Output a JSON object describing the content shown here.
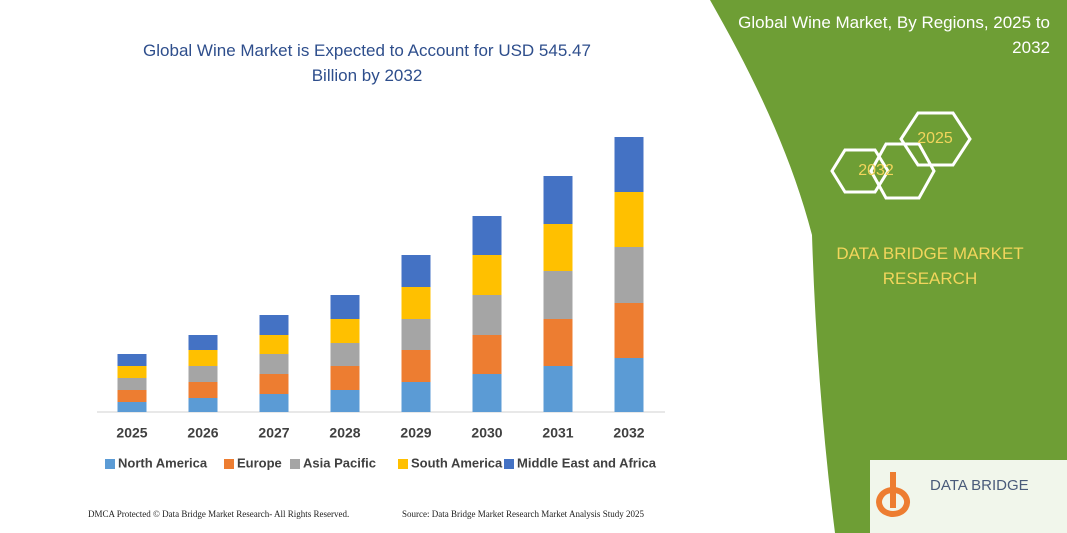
{
  "chart_data": {
    "type": "stacked_bar",
    "title": "Global Wine Market is Expected to Account for USD 545.47 Billion by 2032",
    "categories": [
      "2025",
      "2026",
      "2027",
      "2028",
      "2029",
      "2030",
      "2031",
      "2032"
    ],
    "series": [
      {
        "name": "North America",
        "color": "#5b9bd5",
        "values": [
          10,
          14,
          18,
          22,
          30,
          38,
          46,
          54
        ]
      },
      {
        "name": "Europe",
        "color": "#ed7d31",
        "values": [
          12,
          16,
          20,
          24,
          32,
          39,
          47,
          55
        ]
      },
      {
        "name": "Asia Pacific",
        "color": "#a5a5a5",
        "values": [
          12,
          16,
          20,
          23,
          31,
          40,
          48,
          56
        ]
      },
      {
        "name": "South America",
        "color": "#ffc000",
        "values": [
          12,
          16,
          19,
          24,
          32,
          40,
          47,
          55
        ]
      },
      {
        "name": "Middle East and Africa",
        "color": "#4472c4",
        "values": [
          12,
          15,
          20,
          24,
          32,
          39,
          48,
          55
        ]
      }
    ],
    "ylim": [
      0,
      280
    ]
  },
  "panel": {
    "title": "Global Wine Market, By Regions, 2025 to 2032",
    "hex_small": "2025",
    "hex_large": "2032",
    "brand": "DATA BRIDGE MARKET RESEARCH",
    "logo": "DATA BRIDGE"
  },
  "footer": {
    "left": "DMCA Protected © Data Bridge Market Research- All Rights Reserved.",
    "right": "Source: Data Bridge Market Research Market Analysis Study 2025"
  }
}
